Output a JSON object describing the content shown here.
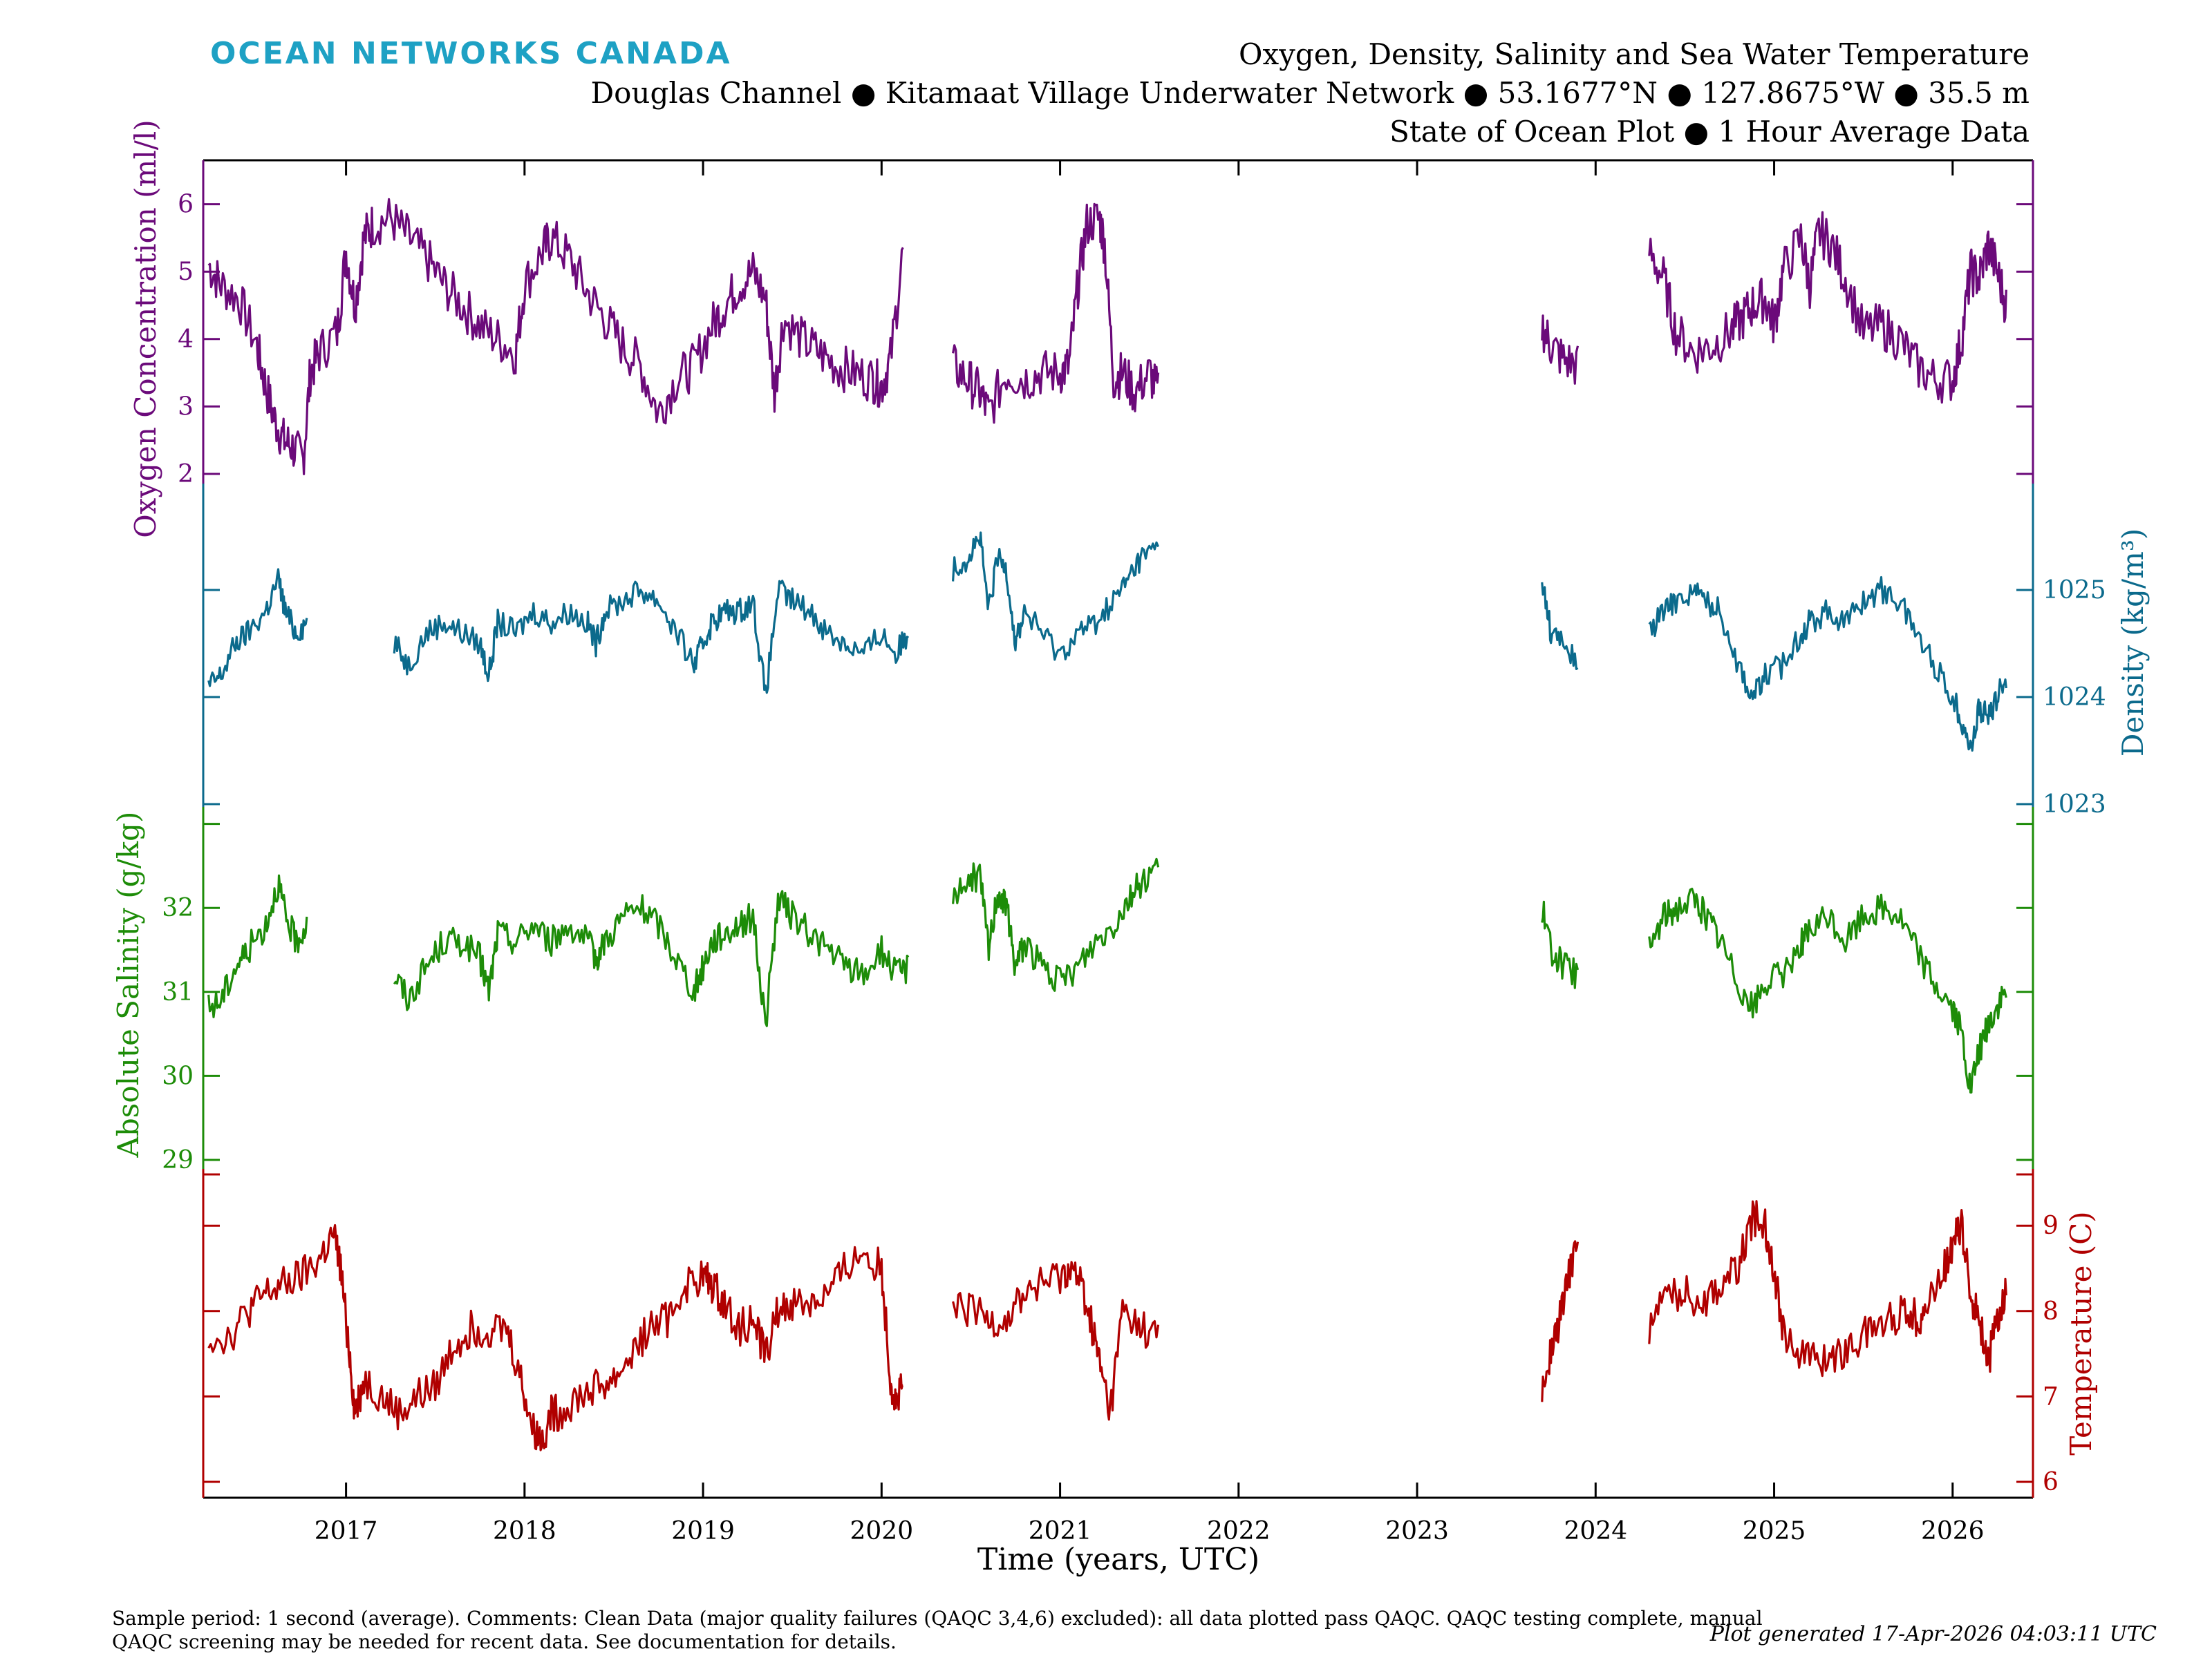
{
  "header": {
    "brand": "OCEAN NETWORKS CANADA",
    "title_line1": "Oxygen, Density, Salinity and Sea Water Temperature",
    "title_line2": "Douglas Channel ● Kitamaat Village Underwater Network ● 53.1677°N ● 127.8675°W ● 35.5 m",
    "title_line3": "State of Ocean Plot ● 1 Hour Average Data"
  },
  "footer": {
    "note": "Sample period: 1 second (average). Comments: Clean Data (major quality failures (QAQC 3,4,6) excluded): all data plotted pass QAQC. QAQC testing complete, manual QAQC screening may be needed for recent data. See documentation for details.",
    "generated": "Plot generated 17-Apr-2026 04:03:11 UTC"
  },
  "colors": {
    "oxygen": "#6b0a7a",
    "density": "#0b6a8c",
    "salinity": "#1d8c08",
    "temperature": "#b00000",
    "brand": "#1ea1c4"
  },
  "chart_data": {
    "type": "line",
    "xlabel": "Time (years, UTC)",
    "xlim": [
      2016.2,
      2026.45
    ],
    "x_ticks": [
      "2017",
      "2018",
      "2019",
      "2020",
      "2021",
      "2022",
      "2023",
      "2024",
      "2025",
      "2026"
    ],
    "grid": false,
    "series": [
      {
        "key": "oxygen",
        "name": "Oxygen Concentration (ml/l)",
        "axis": "left",
        "ticks": [
          "2",
          "3",
          "4",
          "5",
          "6"
        ],
        "x": [
          2016.23,
          2016.3,
          2016.4,
          2016.5,
          2016.55,
          2016.6,
          2016.65,
          2016.7,
          2016.76,
          2016.8,
          2016.85,
          2016.95,
          2017.0,
          2017.05,
          2017.1,
          2017.15,
          2017.25,
          2017.35,
          2017.45,
          2017.55,
          2017.65,
          2017.75,
          2017.85,
          2017.95,
          2018.0,
          2018.1,
          2018.15,
          2018.25,
          2018.35,
          2018.45,
          2018.55,
          2018.65,
          2018.75,
          2018.85,
          2018.95,
          2019.05,
          2019.12,
          2019.2,
          2019.28,
          2019.35,
          2019.4,
          2019.45,
          2019.55,
          2019.65,
          2019.75,
          2019.85,
          2019.95,
          2020.0,
          2020.05,
          2020.12,
          null,
          2020.4,
          2020.48,
          2020.55,
          2020.6,
          2020.7,
          2020.8,
          2020.9,
          2021.0,
          2021.05,
          2021.1,
          2021.15,
          2021.22,
          2021.25,
          2021.3,
          2021.35,
          2021.42,
          2021.5,
          2021.55,
          null,
          2023.7,
          2023.75,
          2023.82,
          2023.9,
          null,
          2024.3,
          2024.38,
          2024.45,
          2024.55,
          2024.65,
          2024.75,
          2024.82,
          2024.88,
          2024.95,
          2025.0,
          2025.05,
          2025.15,
          2025.2,
          2025.25,
          2025.32,
          2025.4,
          2025.5,
          2025.6,
          2025.7,
          2025.8,
          2025.9,
          2026.0,
          2026.05,
          2026.1,
          2026.15,
          2026.2,
          2026.25,
          2026.3
        ],
        "y": [
          5.1,
          4.8,
          4.6,
          3.9,
          3.3,
          2.8,
          2.5,
          2.4,
          2.2,
          3.5,
          3.8,
          4.1,
          5.3,
          4.5,
          5.5,
          5.7,
          5.8,
          5.5,
          5.2,
          4.8,
          4.5,
          4.2,
          4.0,
          3.8,
          4.8,
          5.3,
          5.5,
          5.2,
          4.7,
          4.3,
          3.9,
          3.6,
          2.9,
          3.4,
          3.6,
          4.2,
          4.5,
          4.8,
          5.0,
          4.6,
          3.2,
          4.3,
          4.0,
          3.8,
          3.6,
          3.5,
          3.4,
          3.3,
          3.7,
          5.3,
          null,
          3.6,
          3.4,
          3.2,
          2.9,
          3.5,
          3.4,
          3.5,
          3.5,
          3.6,
          4.8,
          5.7,
          5.8,
          5.4,
          3.4,
          3.5,
          3.2,
          3.5,
          3.2,
          null,
          4.2,
          3.9,
          3.7,
          3.6,
          null,
          5.3,
          4.9,
          4.1,
          3.8,
          3.9,
          4.1,
          4.3,
          4.5,
          4.6,
          4.2,
          5.0,
          5.5,
          4.8,
          5.6,
          5.4,
          4.9,
          4.1,
          4.2,
          4.0,
          3.6,
          3.4,
          3.4,
          4.0,
          5.0,
          4.9,
          5.4,
          5.0,
          4.5
        ]
      },
      {
        "key": "density",
        "name": "Density (kg/m³)",
        "axis": "right",
        "ticks": [
          "1023",
          "1024",
          "1025"
        ],
        "x": [
          2016.23,
          2016.3,
          2016.38,
          2016.45,
          2016.55,
          2016.62,
          2016.66,
          2016.72,
          2016.78,
          null,
          2017.27,
          2017.35,
          2017.45,
          2017.55,
          2017.65,
          2017.75,
          2017.8,
          2017.85,
          2017.95,
          2018.05,
          2018.15,
          2018.25,
          2018.35,
          2018.4,
          2018.45,
          2018.55,
          2018.65,
          2018.75,
          2018.85,
          2018.95,
          2019.0,
          2019.05,
          2019.12,
          2019.2,
          2019.28,
          2019.35,
          2019.42,
          2019.5,
          2019.6,
          2019.7,
          2019.8,
          2019.9,
          2020.0,
          2020.08,
          2020.15,
          null,
          2020.4,
          2020.48,
          2020.55,
          2020.6,
          2020.65,
          2020.7,
          2020.75,
          2020.8,
          2020.9,
          2021.0,
          2021.1,
          2021.2,
          2021.3,
          2021.38,
          2021.45,
          2021.55,
          null,
          2023.7,
          2023.75,
          2023.82,
          2023.9,
          null,
          2024.3,
          2024.38,
          2024.45,
          2024.55,
          2024.62,
          2024.7,
          2024.8,
          2024.88,
          2024.95,
          2025.05,
          2025.15,
          2025.2,
          2025.3,
          2025.4,
          2025.5,
          2025.6,
          2025.7,
          2025.8,
          2025.9,
          2026.0,
          2026.05,
          2026.1,
          2026.15,
          2026.2,
          2026.25,
          2026.3
        ],
        "y": [
          1024.1,
          1024.2,
          1024.5,
          1024.6,
          1024.8,
          1025.1,
          1024.8,
          1024.6,
          1024.7,
          null,
          1024.5,
          1024.3,
          1024.6,
          1024.7,
          1024.6,
          1024.5,
          1024.2,
          1024.7,
          1024.6,
          1024.8,
          1024.7,
          1024.8,
          1024.7,
          1024.5,
          1024.8,
          1024.9,
          1025.0,
          1024.9,
          1024.6,
          1024.3,
          1024.5,
          1024.7,
          1024.8,
          1024.8,
          1024.9,
          1024.0,
          1025.0,
          1024.9,
          1024.8,
          1024.6,
          1024.5,
          1024.4,
          1024.6,
          1024.4,
          1024.6,
          null,
          1025.2,
          1025.3,
          1025.5,
          1024.8,
          1025.3,
          1025.2,
          1024.5,
          1024.8,
          1024.6,
          1024.4,
          1024.6,
          1024.7,
          1024.9,
          1025.1,
          1025.3,
          1025.4,
          null,
          1025.1,
          1024.6,
          1024.5,
          1024.3,
          null,
          1024.6,
          1024.8,
          1024.9,
          1025.0,
          1024.9,
          1024.8,
          1024.3,
          1024.0,
          1024.2,
          1024.3,
          1024.6,
          1024.7,
          1024.8,
          1024.7,
          1024.9,
          1025.0,
          1024.9,
          1024.6,
          1024.3,
          1024.0,
          1023.8,
          1023.5,
          1023.9,
          1023.8,
          1024.0,
          1024.2
        ]
      },
      {
        "key": "salinity",
        "name": "Absolute Salinity (g/kg)",
        "axis": "left",
        "ticks": [
          "29",
          "30",
          "31",
          "32"
        ],
        "x": [
          2016.23,
          2016.3,
          2016.38,
          2016.45,
          2016.55,
          2016.62,
          2016.66,
          2016.72,
          2016.78,
          null,
          2017.27,
          2017.35,
          2017.45,
          2017.55,
          2017.65,
          2017.75,
          2017.8,
          2017.85,
          2017.95,
          2018.05,
          2018.15,
          2018.25,
          2018.35,
          2018.4,
          2018.45,
          2018.55,
          2018.65,
          2018.75,
          2018.85,
          2018.95,
          2019.0,
          2019.05,
          2019.12,
          2019.2,
          2019.28,
          2019.35,
          2019.42,
          2019.5,
          2019.6,
          2019.7,
          2019.8,
          2019.9,
          2020.0,
          2020.08,
          2020.15,
          null,
          2020.4,
          2020.48,
          2020.55,
          2020.6,
          2020.65,
          2020.7,
          2020.75,
          2020.8,
          2020.9,
          2021.0,
          2021.1,
          2021.2,
          2021.3,
          2021.38,
          2021.45,
          2021.55,
          null,
          2023.7,
          2023.75,
          2023.82,
          2023.9,
          null,
          2024.3,
          2024.38,
          2024.45,
          2024.55,
          2024.62,
          2024.7,
          2024.8,
          2024.88,
          2024.95,
          2025.05,
          2025.15,
          2025.2,
          2025.3,
          2025.4,
          2025.5,
          2025.6,
          2025.7,
          2025.8,
          2025.9,
          2026.0,
          2026.05,
          2026.1,
          2026.15,
          2026.2,
          2026.25,
          2026.3
        ],
        "y": [
          30.8,
          30.9,
          31.3,
          31.5,
          31.8,
          32.3,
          31.9,
          31.6,
          31.8,
          null,
          31.2,
          30.9,
          31.3,
          31.6,
          31.6,
          31.4,
          31.0,
          31.7,
          31.6,
          31.8,
          31.6,
          31.8,
          31.6,
          31.4,
          31.6,
          31.9,
          32.0,
          31.8,
          31.4,
          31.0,
          31.3,
          31.6,
          31.7,
          31.8,
          31.9,
          30.6,
          32.1,
          31.9,
          31.7,
          31.5,
          31.3,
          31.2,
          31.5,
          31.2,
          31.3,
          null,
          32.2,
          32.3,
          32.4,
          31.5,
          32.2,
          32.0,
          31.3,
          31.6,
          31.3,
          31.1,
          31.3,
          31.6,
          31.8,
          32.1,
          32.3,
          32.5,
          null,
          32.0,
          31.5,
          31.3,
          31.2,
          null,
          31.5,
          31.9,
          32.0,
          32.1,
          31.9,
          31.6,
          31.1,
          30.8,
          31.1,
          31.2,
          31.6,
          31.7,
          31.9,
          31.6,
          31.9,
          32.0,
          31.9,
          31.5,
          31.1,
          30.8,
          30.5,
          29.8,
          30.3,
          30.6,
          30.8,
          31.0
        ]
      },
      {
        "key": "temperature",
        "name": "Temperature (C)",
        "axis": "right",
        "ticks": [
          "6",
          "7",
          "8",
          "9"
        ],
        "x": [
          2016.23,
          2016.35,
          2016.45,
          2016.55,
          2016.65,
          2016.75,
          2016.85,
          2016.93,
          2016.97,
          2017.02,
          2017.05,
          2017.1,
          2017.2,
          2017.3,
          2017.4,
          2017.5,
          2017.6,
          2017.7,
          2017.8,
          2017.9,
          2017.98,
          2018.05,
          2018.1,
          2018.15,
          2018.2,
          2018.3,
          2018.4,
          2018.5,
          2018.6,
          2018.7,
          2018.8,
          2018.9,
          2019.0,
          2019.05,
          2019.12,
          2019.2,
          2019.28,
          2019.35,
          2019.42,
          2019.5,
          2019.6,
          2019.7,
          2019.8,
          2019.9,
          2020.0,
          2020.05,
          2020.08,
          2020.12,
          null,
          2020.4,
          2020.5,
          2020.6,
          2020.7,
          2020.8,
          2020.9,
          2021.0,
          2021.05,
          2021.12,
          2021.18,
          2021.22,
          2021.28,
          2021.35,
          2021.45,
          2021.55,
          null,
          2023.7,
          2023.75,
          2023.8,
          2023.85,
          2023.9,
          null,
          2024.3,
          2024.4,
          2024.5,
          2024.6,
          2024.7,
          2024.8,
          2024.88,
          2024.95,
          2025.0,
          2025.05,
          2025.15,
          2025.25,
          2025.35,
          2025.45,
          2025.55,
          2025.65,
          2025.75,
          2025.8,
          2025.85,
          2025.95,
          2026.0,
          2026.05,
          2026.1,
          2026.15,
          2026.2,
          2026.25,
          2026.3
        ],
        "y": [
          7.7,
          7.7,
          8.0,
          8.2,
          8.3,
          8.4,
          8.6,
          8.9,
          8.5,
          7.5,
          6.8,
          7.2,
          7.0,
          6.8,
          7.0,
          7.1,
          7.6,
          7.8,
          7.8,
          7.8,
          7.2,
          6.6,
          6.5,
          6.8,
          6.8,
          7.0,
          7.1,
          7.2,
          7.5,
          7.8,
          7.9,
          8.3,
          8.4,
          8.3,
          8.1,
          7.8,
          7.9,
          7.5,
          8.0,
          8.1,
          8.1,
          8.2,
          8.5,
          8.7,
          8.5,
          7.2,
          6.9,
          7.1,
          null,
          8.0,
          8.0,
          7.9,
          7.9,
          8.2,
          8.3,
          8.4,
          8.5,
          8.3,
          7.8,
          7.4,
          6.8,
          8.0,
          7.8,
          7.7,
          null,
          7.0,
          7.5,
          7.9,
          8.4,
          8.9,
          null,
          7.8,
          8.2,
          8.2,
          8.1,
          8.3,
          8.5,
          9.1,
          9.0,
          8.5,
          7.8,
          7.5,
          7.4,
          7.5,
          7.6,
          7.8,
          7.9,
          8.0,
          7.9,
          8.0,
          8.5,
          8.8,
          9.0,
          8.2,
          7.9,
          7.4,
          7.9,
          8.2
        ]
      }
    ]
  }
}
